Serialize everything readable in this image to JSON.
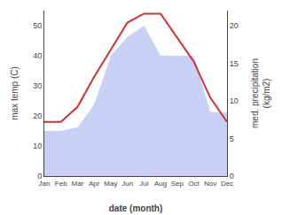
{
  "chart_data": {
    "type": "line",
    "categories": [
      "Jan",
      "Feb",
      "Mar",
      "Apr",
      "May",
      "Jun",
      "Jul",
      "Aug",
      "Sep",
      "Oct",
      "Nov",
      "Dec"
    ],
    "xlabel": "date (month)",
    "ylabel": "max temp (C)",
    "y2label": "med. precipitation\n(kg/m2)",
    "series": [
      {
        "type": "area",
        "axis": "y2",
        "color": "#c8d0f5",
        "values": [
          6,
          6,
          6.5,
          9.5,
          16,
          18.5,
          20,
          16,
          16,
          16,
          8.5,
          8.5
        ]
      },
      {
        "type": "line",
        "color": "#cc3333",
        "values": [
          18,
          18,
          23,
          33,
          42,
          51,
          54,
          54,
          46,
          38,
          26,
          18
        ]
      }
    ],
    "ylim": [
      0,
      55
    ],
    "yticks": [
      0,
      10,
      20,
      30,
      40,
      50
    ],
    "y2lim": [
      0,
      22
    ],
    "y2ticks": [
      0,
      5,
      10,
      15,
      20
    ],
    "grid": false
  }
}
